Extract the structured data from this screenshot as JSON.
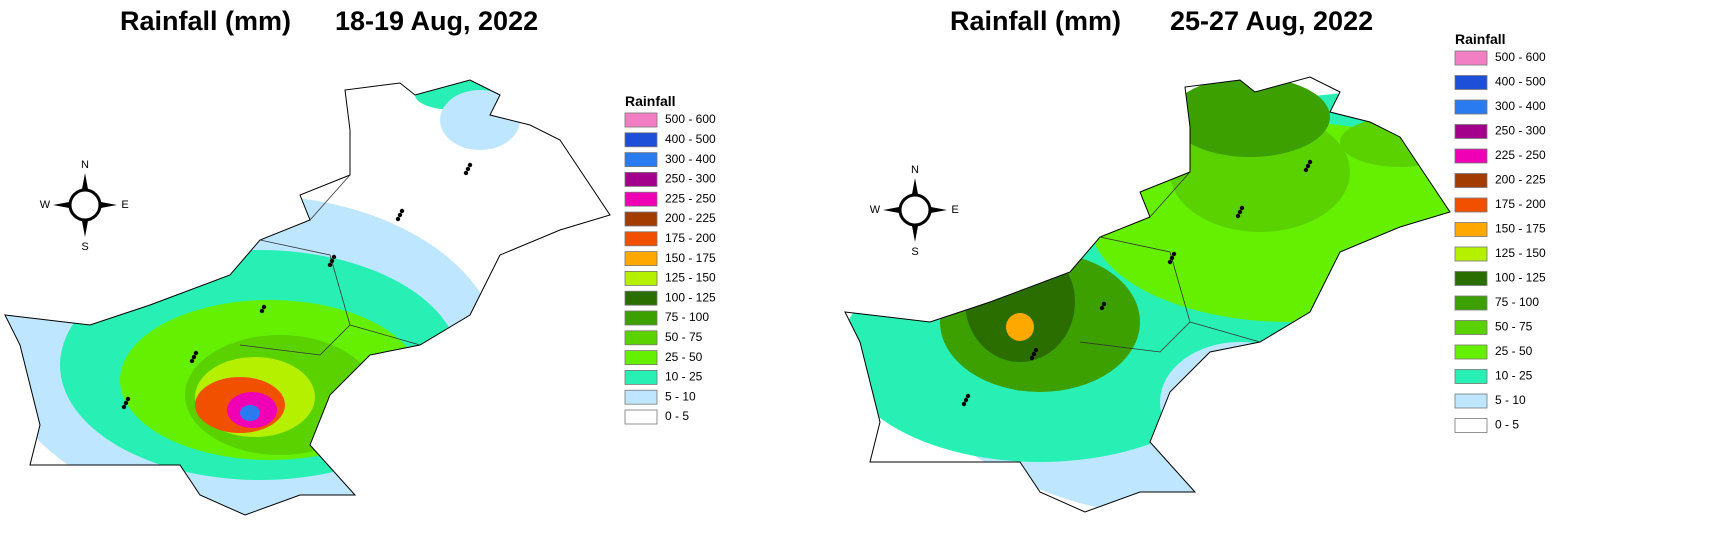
{
  "maps": [
    {
      "title": "Rainfall (mm)",
      "date": "18-19 Aug, 2022",
      "compass": {
        "n": "N",
        "e": "E",
        "s": "S",
        "w": "W"
      },
      "legend": {
        "title": "Rainfall",
        "items": [
          {
            "label": "500 - 600",
            "color": "#f27fc3"
          },
          {
            "label": "400 - 500",
            "color": "#1e4fd8"
          },
          {
            "label": "300 - 400",
            "color": "#2a7af0"
          },
          {
            "label": "250 - 300",
            "color": "#a3008c"
          },
          {
            "label": "225 - 250",
            "color": "#f000b4"
          },
          {
            "label": "200 - 225",
            "color": "#a33c00"
          },
          {
            "label": "175 - 200",
            "color": "#f05000"
          },
          {
            "label": "150 - 175",
            "color": "#ffa800"
          },
          {
            "label": "125 - 150",
            "color": "#b4f000"
          },
          {
            "label": "100 - 125",
            "color": "#2a6e00"
          },
          {
            "label": "75 - 100",
            "color": "#3ca000"
          },
          {
            "label": "50 - 75",
            "color": "#5ad200"
          },
          {
            "label": "25 - 50",
            "color": "#64f000"
          },
          {
            "label": "10 - 25",
            "color": "#28f0b4"
          },
          {
            "label": "5 - 10",
            "color": "#bee6ff"
          },
          {
            "label": "0 - 5",
            "color": "#ffffff"
          }
        ]
      }
    },
    {
      "title": "Rainfall (mm)",
      "date": "25-27 Aug, 2022",
      "compass": {
        "n": "N",
        "e": "E",
        "s": "S",
        "w": "W"
      },
      "legend": {
        "title": "Rainfall",
        "items": [
          {
            "label": "500 - 600",
            "color": "#f27fc3"
          },
          {
            "label": "400 - 500",
            "color": "#1e4fd8"
          },
          {
            "label": "300 - 400",
            "color": "#2a7af0"
          },
          {
            "label": "250 - 300",
            "color": "#a3008c"
          },
          {
            "label": "225 - 250",
            "color": "#f000b4"
          },
          {
            "label": "200 - 225",
            "color": "#a33c00"
          },
          {
            "label": "175 - 200",
            "color": "#f05000"
          },
          {
            "label": "150 - 175",
            "color": "#ffa800"
          },
          {
            "label": "125 - 150",
            "color": "#b4f000"
          },
          {
            "label": "100 - 125",
            "color": "#2a6e00"
          },
          {
            "label": "75 - 100",
            "color": "#3ca000"
          },
          {
            "label": "50 - 75",
            "color": "#5ad200"
          },
          {
            "label": "25 - 50",
            "color": "#64f000"
          },
          {
            "label": "10 - 25",
            "color": "#28f0b4"
          },
          {
            "label": "5 - 10",
            "color": "#bee6ff"
          },
          {
            "label": "0 - 5",
            "color": "#ffffff"
          }
        ]
      }
    }
  ]
}
